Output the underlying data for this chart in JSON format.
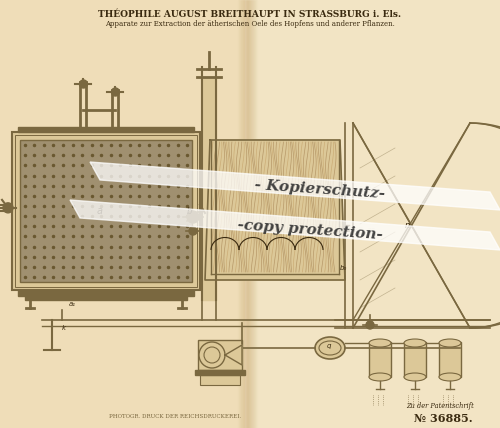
{
  "bg_color": "#f0e0c0",
  "bg_color_right": "#e8d4a8",
  "crease_color": "#d4b878",
  "title1": "THÉOPHILE AUGUST BREITHAUPT IN STRASSBURG i. Els.",
  "title2": "Apparate zur Extraction der ätherischen Oele des Hopfens und anderer Pflanzen.",
  "footer_left": "PHOTOGR. DRUCK DER REICHSDRUCKEREI.",
  "footer_right_top": "Zu der Patentschrift",
  "footer_right_bottom": "№ 36885.",
  "watermark1": "- Kopierschutz-",
  "watermark2": "-copy protection-",
  "line_color": "#7a6840",
  "dark_color": "#3a2a10",
  "bg_inner": "#eedcb0",
  "grid_color": "#908060",
  "strand_color": "#b09060",
  "strand_color2": "#c8a870"
}
